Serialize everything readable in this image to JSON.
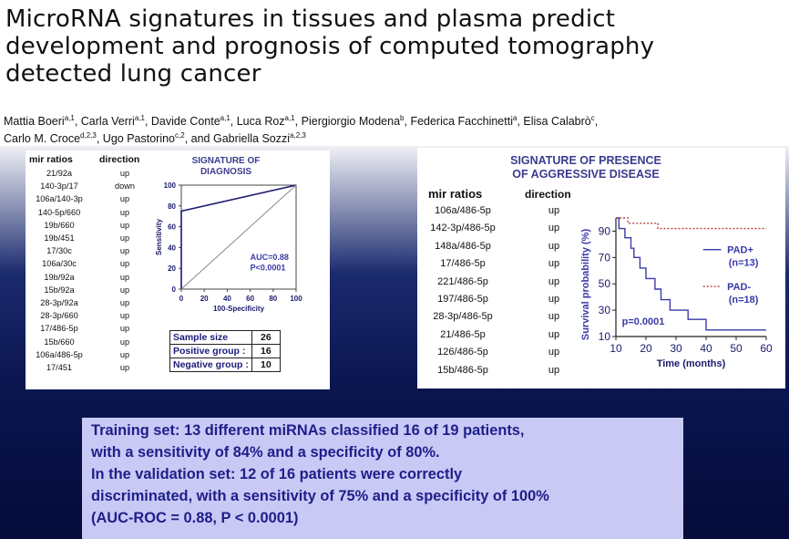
{
  "title_lines": [
    "MicroRNA signatures in tissues and plasma predict",
    "development and prognosis of computed tomography",
    "detected lung cancer"
  ],
  "authors": {
    "line1": [
      {
        "name": "Mattia Boeri",
        "sup": "a,1"
      },
      {
        "name": "Carla Verri",
        "sup": "a,1"
      },
      {
        "name": "Davide Conte",
        "sup": "a,1"
      },
      {
        "name": "Luca Roz",
        "sup": "a,1"
      },
      {
        "name": "Piergiorgio Modena",
        "sup": "b"
      },
      {
        "name": "Federica Facchinetti",
        "sup": "a"
      },
      {
        "name": "Elisa Calabrò",
        "sup": "c"
      }
    ],
    "line2": [
      {
        "name": "Carlo M. Croce",
        "sup": "d,2,3"
      },
      {
        "name": "Ugo Pastorino",
        "sup": "c,2"
      },
      {
        "name": "and Gabriella Sozzi",
        "sup": "a,2,3"
      }
    ]
  },
  "left_panel": {
    "headers": {
      "ratio": "mir ratios",
      "direction": "direction"
    },
    "rows": [
      [
        "21/92a",
        "up"
      ],
      [
        "140-3p/17",
        "down"
      ],
      [
        "106a/140-3p",
        "up"
      ],
      [
        "140-5p/660",
        "up"
      ],
      [
        "19b/660",
        "up"
      ],
      [
        "19b/451",
        "up"
      ],
      [
        "17/30c",
        "up"
      ],
      [
        "106a/30c",
        "up"
      ],
      [
        "19b/92a",
        "up"
      ],
      [
        "15b/92a",
        "up"
      ],
      [
        "28-3p/92a",
        "up"
      ],
      [
        "28-3p/660",
        "up"
      ],
      [
        "17/486-5p",
        "up"
      ],
      [
        "15b/660",
        "up"
      ],
      [
        "106a/486-5p",
        "up"
      ],
      [
        "17/451",
        "up"
      ]
    ],
    "stats": [
      {
        "label": "Sample size",
        "value": "26"
      },
      {
        "label": "Positive group :",
        "value": "16"
      },
      {
        "label": "Negative group :",
        "value": "10"
      }
    ]
  },
  "right_panel": {
    "title_lines": [
      "SIGNATURE OF PRESENCE",
      "OF AGGRESSIVE DISEASE"
    ],
    "headers": {
      "ratio": "mir ratios",
      "direction": "direction"
    },
    "rows": [
      [
        "106a/486-5p",
        "up"
      ],
      [
        "142-3p/486-5p",
        "up"
      ],
      [
        "148a/486-5p",
        "up"
      ],
      [
        "17/486-5p",
        "up"
      ],
      [
        "221/486-5p",
        "up"
      ],
      [
        "197/486-5p",
        "up"
      ],
      [
        "28-3p/486-5p",
        "up"
      ],
      [
        "21/486-5p",
        "up"
      ],
      [
        "126/486-5p",
        "up"
      ],
      [
        "15b/486-5p",
        "up"
      ]
    ]
  },
  "chart_data": [
    {
      "type": "line",
      "title": "SIGNATURE OF DIAGNOSIS",
      "xlabel": "100-Specificity",
      "ylabel": "Sensitivity",
      "xlim": [
        0,
        100
      ],
      "ylim": [
        0,
        100
      ],
      "xticks": [
        0,
        20,
        40,
        60,
        80,
        100
      ],
      "yticks": [
        0,
        20,
        40,
        60,
        80,
        100
      ],
      "annotations": [
        "AUC=0.88",
        "P<0.0001"
      ],
      "series": [
        {
          "x": [
            0,
            0,
            100
          ],
          "y": [
            0,
            75,
            100
          ],
          "color": "#1a1a6e"
        },
        {
          "x": [
            0,
            100
          ],
          "y": [
            0,
            100
          ],
          "color": "#888888"
        }
      ]
    },
    {
      "type": "line",
      "xlabel": "Time (months)",
      "ylabel": "Survival probability (%)",
      "xlim": [
        10,
        60
      ],
      "ylim": [
        10,
        100
      ],
      "xticks": [
        10,
        20,
        30,
        40,
        50,
        60
      ],
      "yticks": [
        10,
        30,
        50,
        70,
        90
      ],
      "annotations": [
        "p=0.0001"
      ],
      "series": [
        {
          "name": "PAD+ (n=13)",
          "legend_lines": [
            "PAD+",
            "(n=13)"
          ],
          "color": "#3a3aa8",
          "style": "solid",
          "x": [
            10,
            11,
            11,
            13,
            13,
            15,
            15,
            16,
            16,
            18,
            18,
            20,
            20,
            23,
            23,
            25,
            25,
            28,
            28,
            34,
            34,
            40,
            40,
            60
          ],
          "y": [
            100,
            100,
            92,
            92,
            85,
            85,
            77,
            77,
            70,
            70,
            62,
            62,
            54,
            54,
            46,
            46,
            38,
            38,
            30,
            30,
            23,
            23,
            15,
            15
          ]
        },
        {
          "name": "PAD- (n=18)",
          "legend_lines": [
            "PAD-",
            "(n=18)"
          ],
          "color": "#b84040",
          "style": "dotted",
          "x": [
            10,
            14,
            14,
            24,
            24,
            60
          ],
          "y": [
            100,
            100,
            96,
            96,
            92,
            92
          ]
        }
      ]
    }
  ],
  "summary": [
    "Training set: 13 different miRNAs classified 16 of 19 patients,",
    "with a sensitivity of 84% and a specificity of 80%.",
    "In the validation set:  12 of 16 patients were correctly",
    "discriminated, with a sensitivity of 75% and a specificity of 100%",
    "(AUC-ROC = 0.88, P < 0.0001)"
  ]
}
